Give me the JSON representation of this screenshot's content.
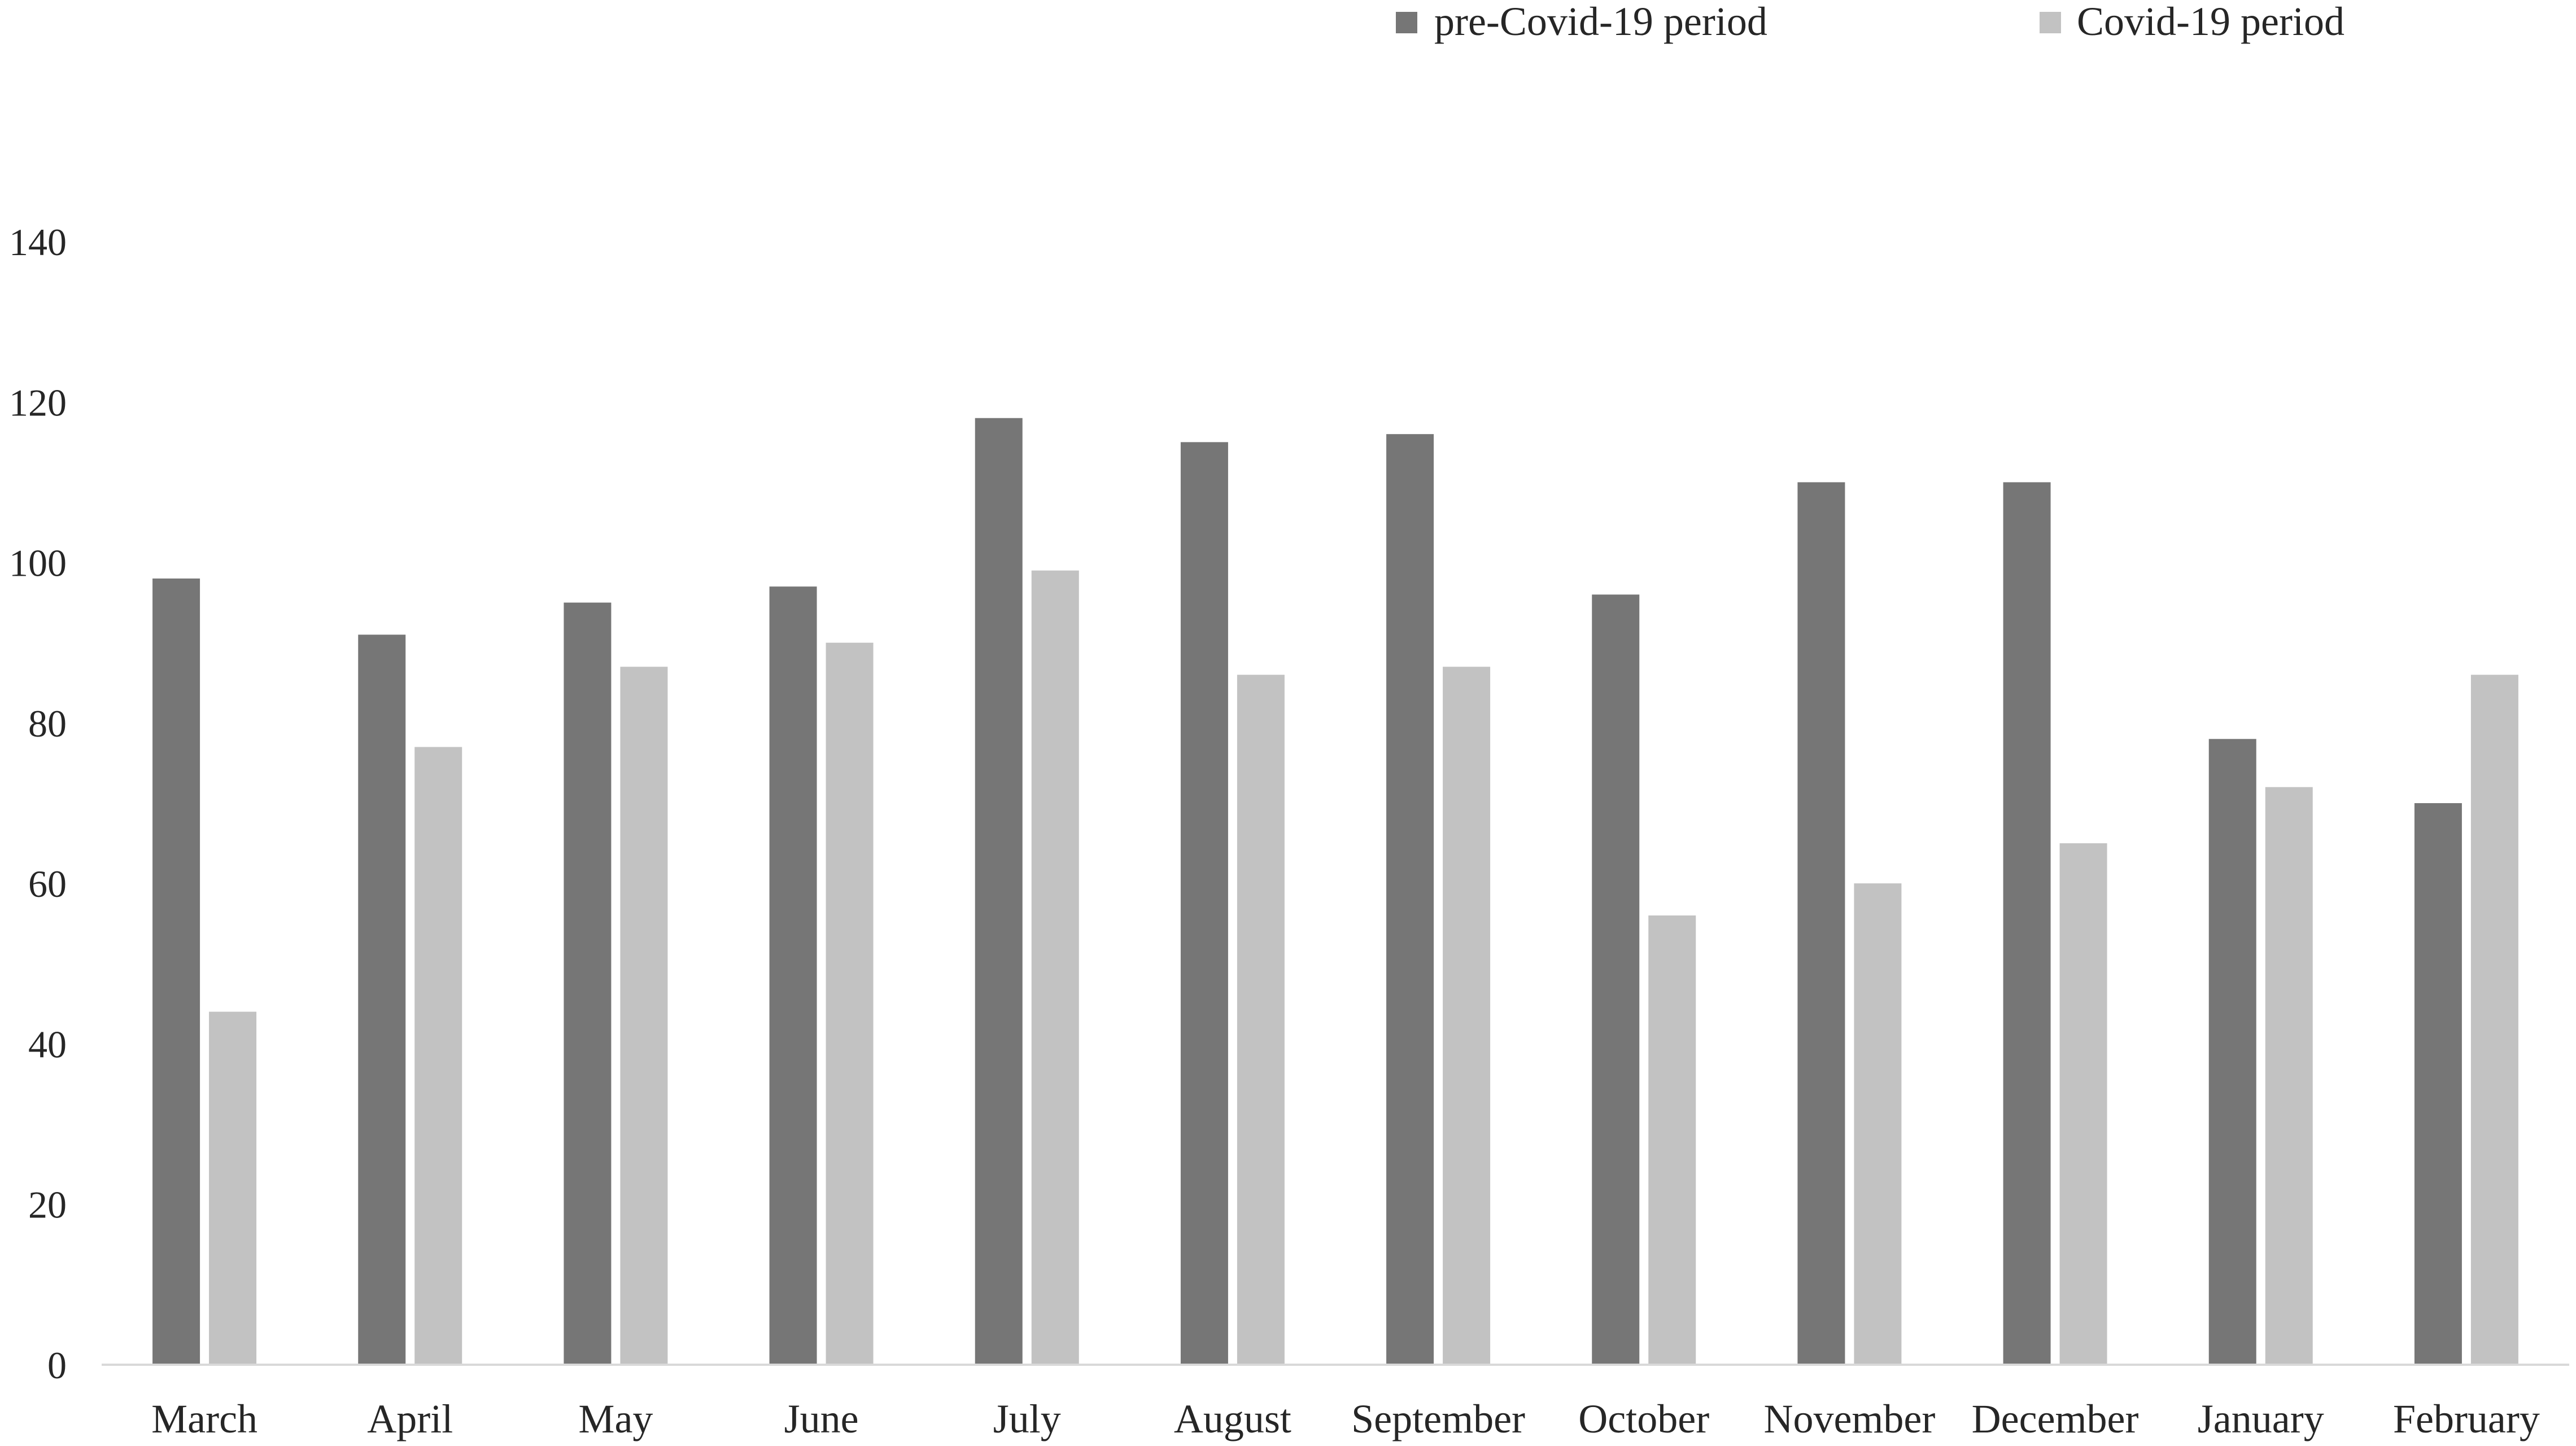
{
  "chart_data": {
    "type": "bar",
    "title": "",
    "xlabel": "",
    "ylabel": "",
    "categories": [
      "March",
      "April",
      "May",
      "June",
      "July",
      "August",
      "September",
      "October",
      "November",
      "December",
      "January",
      "February"
    ],
    "series": [
      {
        "name": "pre-Covid-19 period",
        "color": "#767676",
        "values": [
          98,
          91,
          95,
          97,
          118,
          115,
          116,
          96,
          110,
          110,
          78,
          70
        ]
      },
      {
        "name": "Covid-19 period",
        "color": "#c2c2c2",
        "values": [
          44,
          77,
          87,
          90,
          99,
          86,
          87,
          56,
          60,
          65,
          72,
          86
        ]
      }
    ],
    "ylim": [
      0,
      140
    ],
    "yticks": [
      0,
      20,
      40,
      60,
      80,
      100,
      120,
      140
    ],
    "grid": false,
    "legend_position": "top-right"
  }
}
